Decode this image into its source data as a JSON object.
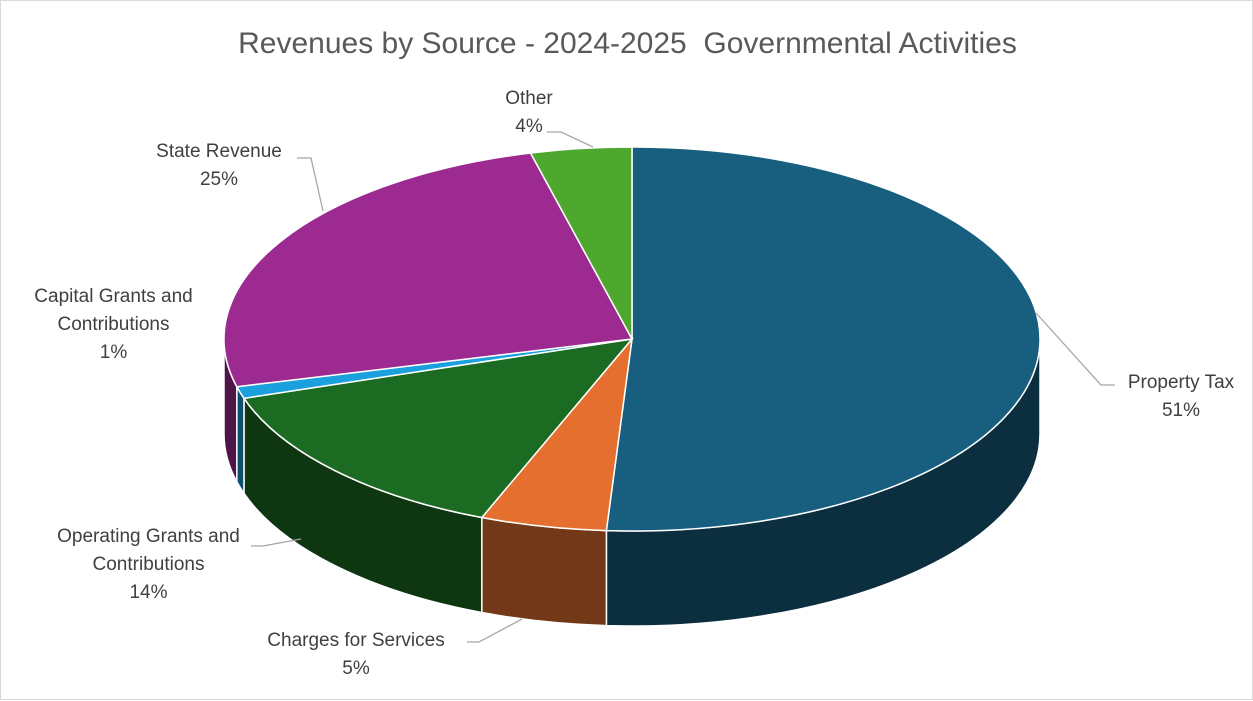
{
  "chart_data": {
    "type": "pie",
    "title": "Revenues by Source - 2024-2025  Governmental Activities",
    "slices": [
      {
        "name_lines": [
          "Property Tax"
        ],
        "value": 51,
        "label": "51%",
        "color": "#175e7f"
      },
      {
        "name_lines": [
          "Charges for Services"
        ],
        "value": 5,
        "label": "5%",
        "color": "#e46f2e"
      },
      {
        "name_lines": [
          "Operating Grants and",
          "Contributions"
        ],
        "value": 14,
        "label": "14%",
        "color": "#1c6b22"
      },
      {
        "name_lines": [
          "Capital Grants and",
          "Contributions"
        ],
        "value": 1,
        "label": "1%",
        "color": "#1aa0dc"
      },
      {
        "name_lines": [
          "State Revenue"
        ],
        "value": 25,
        "label": "25%",
        "color": "#9c2a91"
      },
      {
        "name_lines": [
          "Other"
        ],
        "value": 4,
        "label": "4%",
        "color": "#4ea72e"
      }
    ],
    "legend": "none",
    "style": "3d-pie"
  }
}
